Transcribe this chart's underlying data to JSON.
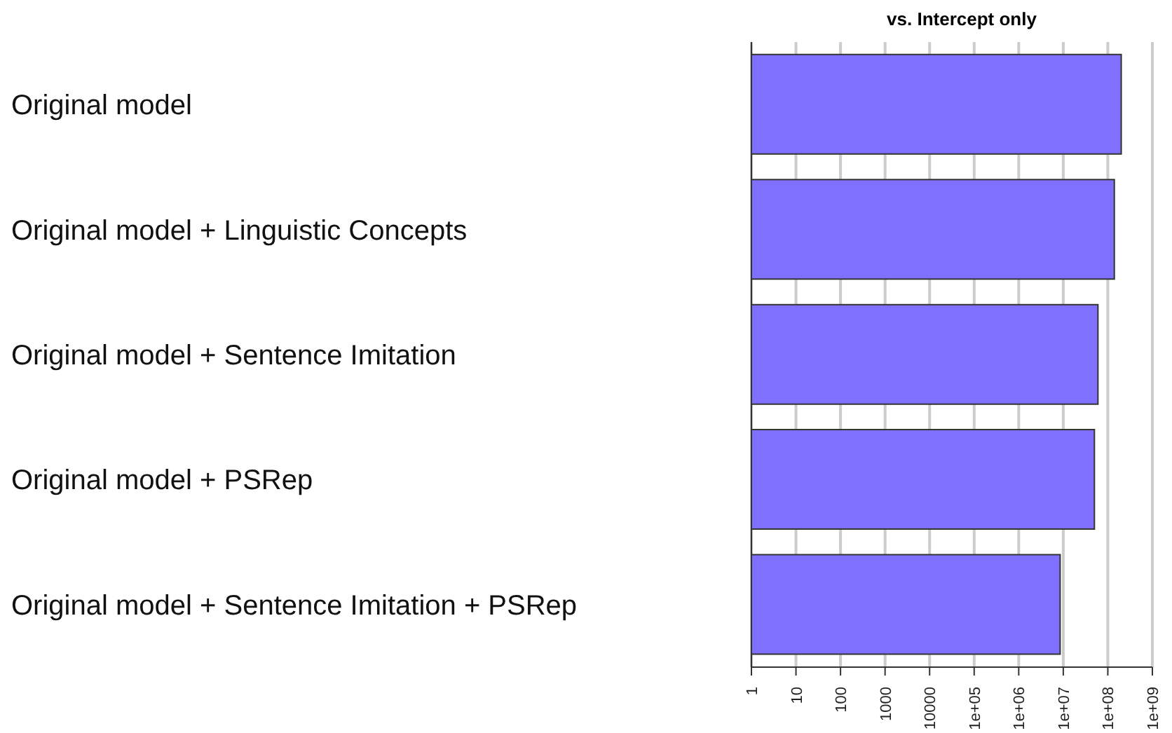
{
  "chart_data": {
    "type": "bar",
    "orientation": "horizontal",
    "title": "vs. Intercept only",
    "categories": [
      "Original model",
      "Original model + Linguistic Concepts",
      "Original model + Sentence Imitation",
      "Original model + PSRep",
      "Original model + Sentence Imitation + PSRep"
    ],
    "values": [
      200000000,
      140000000,
      60000000,
      50000000,
      8500000
    ],
    "color": "#8070ff",
    "log": "x",
    "xlim": [
      1,
      1000000000
    ],
    "xticks": [
      1,
      10,
      100,
      1000,
      10000,
      {
        "value": 100000,
        "label": "1e+05"
      },
      {
        "value": 1000000,
        "label": "1e+06"
      },
      {
        "value": 10000000,
        "label": "1e+07"
      },
      {
        "value": 100000000,
        "label": "1e+08"
      },
      {
        "value": 1000000000,
        "label": "1e+09"
      }
    ],
    "grid": "x"
  }
}
